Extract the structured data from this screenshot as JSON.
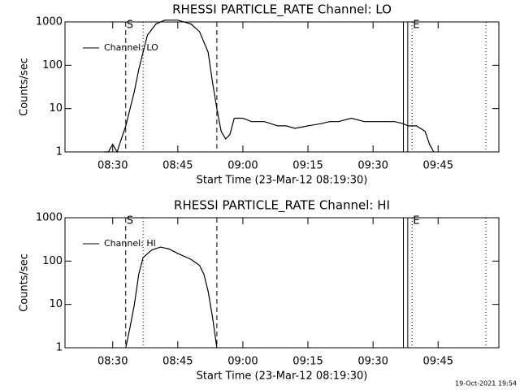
{
  "chart_data": [
    {
      "type": "line",
      "title": "RHESSI PARTICLE_RATE Channel: LO",
      "x_label": "Start Time (23-Mar-12 08:19:30)",
      "y_label": "Counts/sec",
      "x": [
        "08:20",
        "08:21",
        "08:22",
        "08:23",
        "08:24",
        "08:25",
        "08:26",
        "08:27",
        "08:28",
        "08:29",
        "08:30",
        "08:31",
        "08:32",
        "08:33",
        "08:34",
        "08:35",
        "08:36",
        "08:37",
        "08:38",
        "08:40",
        "08:42",
        "08:45",
        "08:48",
        "08:50",
        "08:52",
        "08:53",
        "08:54",
        "08:55",
        "08:56",
        "08:57",
        "08:58",
        "09:00",
        "09:02",
        "09:05",
        "09:08",
        "09:10",
        "09:12",
        "09:15",
        "09:18",
        "09:20",
        "09:22",
        "09:25",
        "09:28",
        "09:30",
        "09:33",
        "09:35",
        "09:37",
        "09:38",
        "09:40",
        "09:42",
        "09:43",
        "09:44"
      ],
      "series": [
        {
          "name": "Channel: LO",
          "color": "#000000",
          "values": [
            1,
            null,
            1,
            null,
            null,
            null,
            1,
            null,
            1,
            1,
            1.5,
            1,
            2,
            4,
            10,
            25,
            80,
            200,
            500,
            900,
            1100,
            1100,
            900,
            600,
            200,
            40,
            10,
            3,
            2,
            2.5,
            6,
            6,
            5,
            5,
            4,
            4,
            3.5,
            4,
            4.5,
            5,
            5,
            6,
            5,
            5,
            5,
            5,
            4.5,
            4,
            4,
            3,
            1.5,
            1
          ]
        }
      ],
      "xlim": [
        "08:19",
        "09:59"
      ],
      "xticks": [
        "08:30",
        "08:45",
        "09:00",
        "09:15",
        "09:30",
        "09:45"
      ],
      "ylim": [
        1,
        1000
      ],
      "yticks": [
        1,
        10,
        100,
        1000
      ],
      "log_scale": true,
      "legend": "upper left",
      "markers": [
        {
          "x": "08:33",
          "style": "dashed",
          "label": "S"
        },
        {
          "x": "08:37",
          "style": "dotted"
        },
        {
          "x": "08:54",
          "style": "dashed"
        },
        {
          "x": "09:37",
          "style": "solid"
        },
        {
          "x": "09:38",
          "style": "solid"
        },
        {
          "x": "09:39",
          "style": "dotted",
          "label": "E"
        },
        {
          "x": "09:56",
          "style": "dotted"
        }
      ]
    },
    {
      "type": "line",
      "title": "RHESSI PARTICLE_RATE Channel: HI",
      "x_label": "Start Time (23-Mar-12 08:19:30)",
      "y_label": "Counts/sec",
      "x": [
        "08:33",
        "08:34",
        "08:35",
        "08:36",
        "08:37",
        "08:39",
        "08:41",
        "08:43",
        "08:45",
        "08:48",
        "08:50",
        "08:51",
        "08:52",
        "08:53",
        "08:54"
      ],
      "series": [
        {
          "name": "Channel: HI",
          "color": "#000000",
          "values": [
            1,
            3,
            10,
            50,
            120,
            180,
            210,
            190,
            150,
            110,
            80,
            50,
            20,
            5,
            1
          ]
        }
      ],
      "xlim": [
        "08:19",
        "09:59"
      ],
      "xticks": [
        "08:30",
        "08:45",
        "09:00",
        "09:15",
        "09:30",
        "09:45"
      ],
      "ylim": [
        1,
        1000
      ],
      "yticks": [
        1,
        10,
        100,
        1000
      ],
      "log_scale": true,
      "legend": "upper left",
      "markers": [
        {
          "x": "08:33",
          "style": "dashed",
          "label": "S"
        },
        {
          "x": "08:37",
          "style": "dotted"
        },
        {
          "x": "08:54",
          "style": "dashed"
        },
        {
          "x": "09:37",
          "style": "solid"
        },
        {
          "x": "09:38",
          "style": "solid"
        },
        {
          "x": "09:39",
          "style": "dotted",
          "label": "E"
        },
        {
          "x": "09:56",
          "style": "dotted"
        }
      ]
    }
  ],
  "footer": "19-Oct-2021 19:54"
}
